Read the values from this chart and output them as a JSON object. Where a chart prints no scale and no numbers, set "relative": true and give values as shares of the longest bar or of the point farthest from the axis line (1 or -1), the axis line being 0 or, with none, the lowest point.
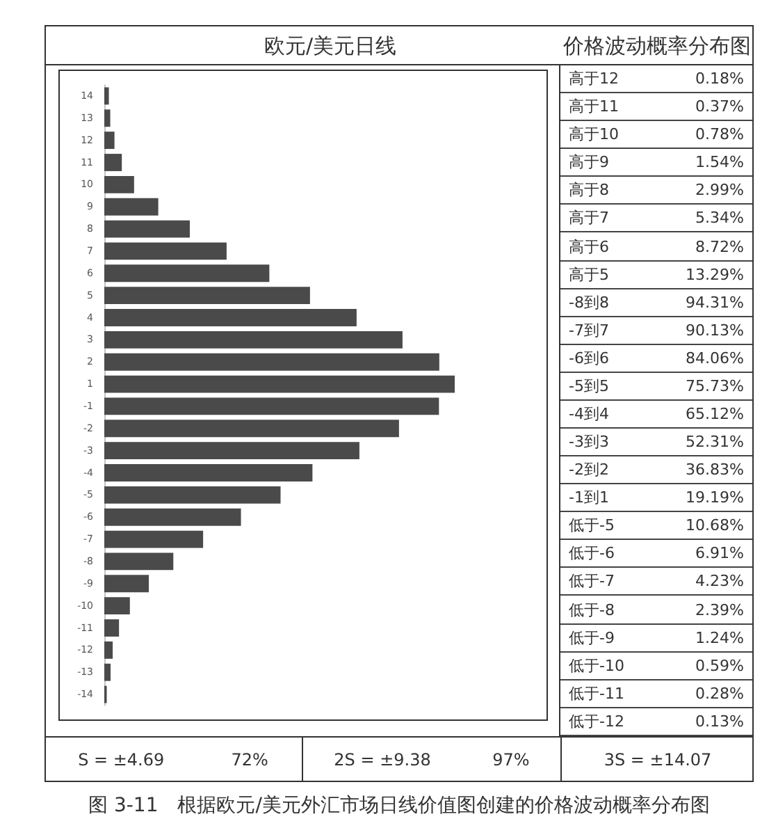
{
  "chart_data": [
    {
      "type": "bar",
      "orientation": "horizontal",
      "relative": true,
      "title": "欧元/美元日线",
      "color": "#4a4a4a",
      "categories": [
        "14",
        "13",
        "12",
        "11",
        "10",
        "9",
        "8",
        "7",
        "6",
        "5",
        "4",
        "3",
        "2",
        "1",
        "-1",
        "-2",
        "-3",
        "-4",
        "-5",
        "-6",
        "-7",
        "-8",
        "-9",
        "-10",
        "-11",
        "-12",
        "-13",
        "-14"
      ],
      "values": [
        0.013,
        0.017,
        0.029,
        0.05,
        0.085,
        0.154,
        0.244,
        0.349,
        0.471,
        0.587,
        0.72,
        0.851,
        0.956,
        1,
        0.955,
        0.841,
        0.728,
        0.594,
        0.503,
        0.39,
        0.282,
        0.197,
        0.127,
        0.073,
        0.042,
        0.024,
        0.018,
        0.007
      ],
      "annotations": [
        "S = ±4.69",
        "72%",
        "2S = ±9.38",
        "97%",
        "3S = ±14.07",
        "图 3-11　根据欧元/美元外汇市场日线价值图创建的价格波动概率分布图"
      ]
    },
    {
      "type": "other",
      "title": "价格波动概率分布图",
      "annotations": [
        "高于12",
        "0.18%",
        "高于11",
        "0.37%",
        "高于10",
        "0.78%",
        "高于9",
        "1.54%",
        "高于8",
        "2.99%",
        "高于7",
        "5.34%",
        "高于6",
        "8.72%",
        "高于5",
        "13.29%",
        "-8到8",
        "94.31%",
        "-7到7",
        "90.13%",
        "-6到6",
        "84.06%",
        "-5到5",
        "75.73%",
        "-4到4",
        "65.12%",
        "-3到3",
        "52.31%",
        "-2到2",
        "36.83%",
        "-1到1",
        "19.19%",
        "低于-5",
        "10.68%",
        "低于-6",
        "6.91%",
        "低于-7",
        "4.23%",
        "低于-8",
        "2.39%",
        "低于-9",
        "1.24%",
        "低于-10",
        "0.59%",
        "低于-11",
        "0.28%",
        "低于-12",
        "0.13%"
      ]
    }
  ]
}
